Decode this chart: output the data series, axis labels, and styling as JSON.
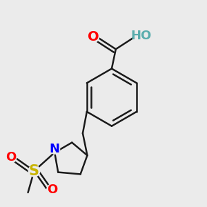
{
  "background_color": "#ebebeb",
  "bond_color": "#1a1a1a",
  "bond_width": 1.8,
  "figsize": [
    3.0,
    3.0
  ],
  "dpi": 100,
  "colors": {
    "O": "#ff0000",
    "OH": "#5aadad",
    "N": "#0000ff",
    "S": "#c8b400",
    "bg": "#ebebeb"
  }
}
